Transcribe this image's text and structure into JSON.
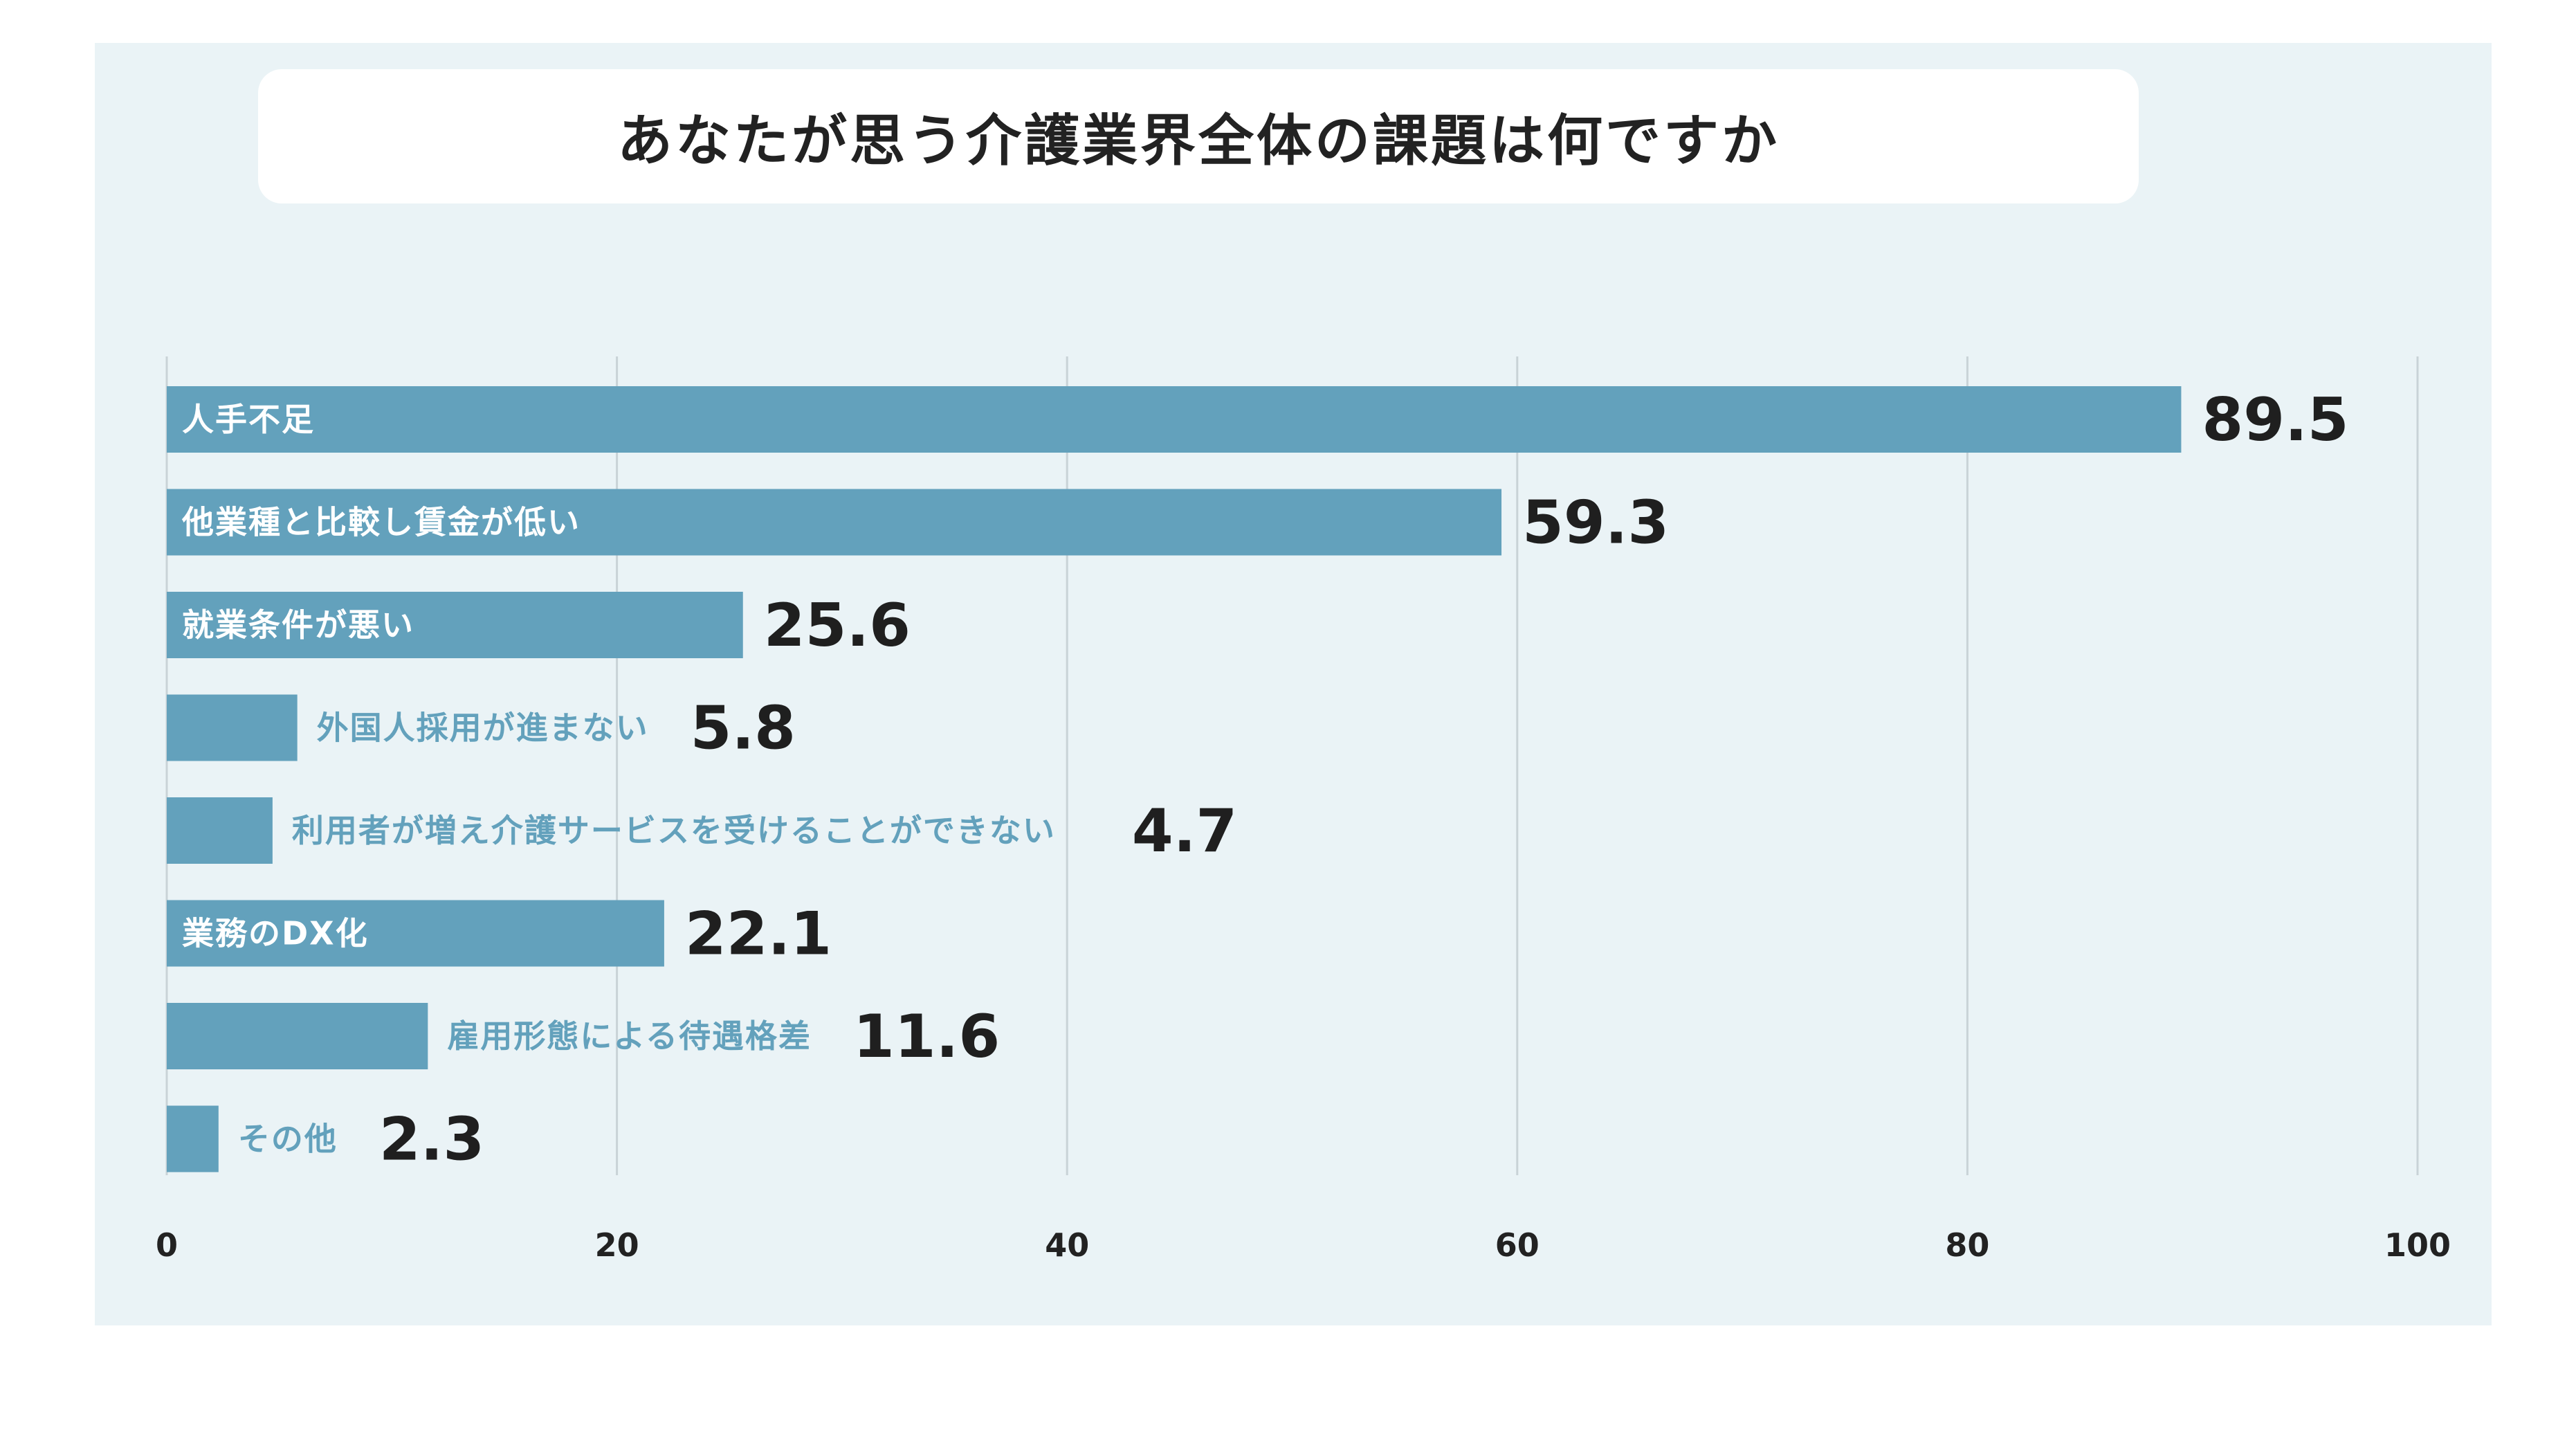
{
  "chart_data": {
    "type": "bar",
    "orientation": "horizontal",
    "title": "あなたが思う介護業界全体の課題は何ですか",
    "categories": [
      "人手不足",
      "他業種と比較し賃金が低い",
      "就業条件が悪い",
      "外国人採用が進まない",
      "利用者が増え介護サービスを受けることができない",
      "業務のDX化",
      "雇用形態による待遇格差",
      "その他"
    ],
    "values": [
      89.5,
      59.3,
      25.6,
      5.8,
      4.7,
      22.1,
      11.6,
      2.3
    ],
    "value_labels": [
      "89.5",
      "59.3",
      "25.6",
      "5.8",
      "4.7",
      "22.1",
      "11.6",
      "2.3"
    ],
    "label_inside_bar": [
      true,
      true,
      true,
      false,
      false,
      true,
      false,
      false
    ],
    "value_label_extra_gap": [
      false,
      false,
      false,
      false,
      true,
      false,
      false,
      false
    ],
    "xlim": [
      0,
      100
    ],
    "xticks": [
      "0",
      "20",
      "40",
      "60",
      "80",
      "100"
    ],
    "xlabel": "",
    "ylabel": "",
    "grid": true,
    "bar_color": "#63a1bc",
    "inside_label_color": "#ffffff",
    "outside_label_color": "#63a1bc",
    "background_color": "#eaf3f6"
  }
}
